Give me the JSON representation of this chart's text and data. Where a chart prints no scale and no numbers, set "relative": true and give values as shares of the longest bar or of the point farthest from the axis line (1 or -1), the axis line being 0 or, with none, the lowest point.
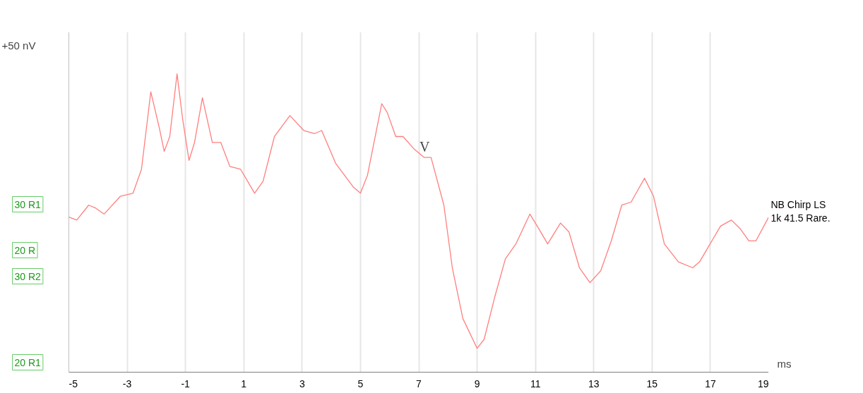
{
  "chart_data": {
    "type": "line",
    "relative": true,
    "xlabel": "ms",
    "xlim": [
      -5,
      19
    ],
    "xticks": [
      -5,
      -3,
      -1,
      1,
      3,
      5,
      7,
      9,
      11,
      13,
      15,
      17,
      19
    ],
    "grid": "x",
    "annotations": [
      "+50 nV",
      {
        "text": "V",
        "x": 7.2,
        "y": 0.72
      },
      "30 R1",
      "20 R",
      "30 R2",
      "20 R1"
    ],
    "series": [
      {
        "name": "NB Chirp LS\n1k 41.5 Rare.",
        "color": "#ff7f7f",
        "x": [
          -5.0,
          -4.73,
          -4.32,
          -4.08,
          -3.79,
          -3.23,
          -2.8,
          -2.51,
          -2.19,
          -1.9,
          -1.73,
          -1.54,
          -1.29,
          -1.1,
          -0.88,
          -0.69,
          -0.42,
          -0.08,
          0.21,
          0.52,
          0.89,
          1.37,
          1.66,
          2.05,
          2.58,
          3.06,
          3.43,
          3.67,
          4.15,
          4.76,
          5.0,
          5.24,
          5.73,
          5.92,
          6.21,
          6.46,
          6.82,
          7.18,
          7.42,
          7.86,
          8.15,
          8.51,
          9.0,
          9.24,
          9.6,
          9.97,
          10.33,
          10.81,
          11.06,
          11.42,
          11.86,
          12.15,
          12.51,
          12.87,
          13.24,
          13.6,
          13.96,
          14.28,
          14.74,
          15.05,
          15.42,
          15.9,
          16.39,
          16.63,
          16.87,
          17.11,
          17.35,
          17.72,
          18.03,
          18.32,
          18.56,
          19.0
        ],
        "values": [
          0.52,
          0.51,
          0.56,
          0.55,
          0.53,
          0.59,
          0.6,
          0.68,
          0.94,
          0.82,
          0.74,
          0.79,
          1.0,
          0.85,
          0.71,
          0.77,
          0.92,
          0.77,
          0.77,
          0.69,
          0.68,
          0.6,
          0.64,
          0.79,
          0.86,
          0.81,
          0.8,
          0.81,
          0.7,
          0.62,
          0.6,
          0.66,
          0.9,
          0.87,
          0.79,
          0.79,
          0.75,
          0.72,
          0.72,
          0.56,
          0.35,
          0.18,
          0.08,
          0.11,
          0.25,
          0.38,
          0.43,
          0.53,
          0.49,
          0.43,
          0.5,
          0.47,
          0.35,
          0.3,
          0.34,
          0.44,
          0.56,
          0.57,
          0.65,
          0.59,
          0.43,
          0.37,
          0.35,
          0.37,
          0.41,
          0.45,
          0.49,
          0.51,
          0.48,
          0.44,
          0.44,
          0.52
        ]
      }
    ]
  }
}
